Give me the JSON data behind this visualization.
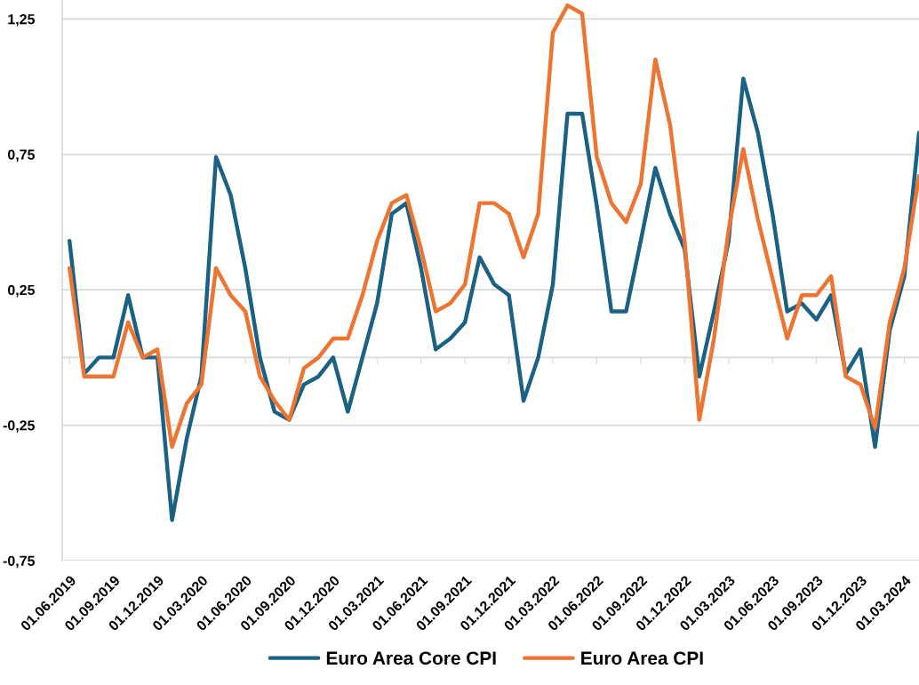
{
  "chart_data": {
    "type": "line",
    "categories": [
      "01.06.2019",
      null,
      null,
      "01.09.2019",
      null,
      null,
      "01.12.2019",
      null,
      null,
      "01.03.2020",
      null,
      null,
      "01.06.2020",
      null,
      null,
      "01.09.2020",
      null,
      null,
      "01.12.2020",
      null,
      null,
      "01.03.2021",
      null,
      null,
      "01.06.2021",
      null,
      null,
      "01.09.2021",
      null,
      null,
      "01.12.2021",
      null,
      null,
      "01.03.2022",
      null,
      null,
      "01.06.2022",
      null,
      null,
      "01.09.2022",
      null,
      null,
      "01.12.2022",
      null,
      null,
      "01.03.2023",
      null,
      null,
      "01.06.2023",
      null,
      null,
      "01.09.2023",
      null,
      null,
      "01.12.2023",
      null,
      null,
      "01.03.2024",
      null
    ],
    "series": [
      {
        "name": "Euro Area Core CPI",
        "color": "#1b6183",
        "values": [
          0.43,
          -0.06,
          0,
          0,
          0.23,
          0,
          0,
          -0.6,
          -0.3,
          -0.07,
          0.74,
          0.6,
          0.33,
          0,
          -0.2,
          -0.23,
          -0.1,
          -0.07,
          0,
          -0.2,
          0,
          0.2,
          0.53,
          0.57,
          0.33,
          0.03,
          0.07,
          0.13,
          0.37,
          0.27,
          0.23,
          -0.16,
          0,
          0.27,
          0.9,
          0.9,
          0.56,
          0.17,
          0.17,
          0.43,
          0.7,
          0.53,
          0.4,
          -0.07,
          0.17,
          0.43,
          1.03,
          0.83,
          0.53,
          0.17,
          0.2,
          0.14,
          0.23,
          -0.06,
          0.03,
          -0.33,
          0.1,
          0.3,
          0.83
        ]
      },
      {
        "name": "Euro Area CPI",
        "color": "#ed7431",
        "values": [
          0.33,
          -0.07,
          -0.07,
          -0.07,
          0.13,
          0,
          0.03,
          -0.33,
          -0.17,
          -0.1,
          0.33,
          0.23,
          0.17,
          -0.07,
          -0.16,
          -0.23,
          -0.04,
          0,
          0.07,
          0.07,
          0.23,
          0.43,
          0.57,
          0.6,
          0.4,
          0.17,
          0.2,
          0.27,
          0.57,
          0.57,
          0.53,
          0.37,
          0.53,
          1.2,
          1.3,
          1.27,
          0.74,
          0.57,
          0.5,
          0.64,
          1.1,
          0.86,
          0.43,
          -0.23,
          0.07,
          0.47,
          0.77,
          0.51,
          0.29,
          0.07,
          0.23,
          0.23,
          0.3,
          -0.07,
          -0.1,
          -0.26,
          0.13,
          0.33,
          0.67
        ]
      }
    ],
    "ylim": [
      -0.75,
      1.32
    ],
    "yticks": [
      {
        "value": -0.75,
        "label": "-0,75"
      },
      {
        "value": -0.25,
        "label": "-0,25"
      },
      {
        "value": 0.25,
        "label": "0,25"
      },
      {
        "value": 0.75,
        "label": "0,75"
      },
      {
        "value": 1.25,
        "label": "1,25"
      }
    ],
    "grid": "y",
    "legend": "bottom",
    "marker": "none",
    "line_style": "solid"
  }
}
